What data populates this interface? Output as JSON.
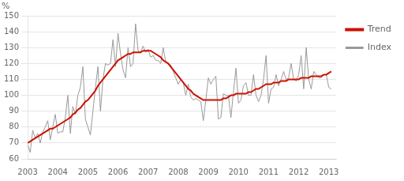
{
  "chart_data": {
    "type": "line",
    "ylabel": "%",
    "x": [
      2003,
      2003.083333,
      2003.166667,
      2003.25,
      2003.333333,
      2003.416667,
      2003.5,
      2003.583333,
      2003.666667,
      2003.75,
      2003.833333,
      2003.916667,
      2004,
      2004.083333,
      2004.166667,
      2004.25,
      2004.333333,
      2004.416667,
      2004.5,
      2004.583333,
      2004.666667,
      2004.75,
      2004.833333,
      2004.916667,
      2005,
      2005.083333,
      2005.166667,
      2005.25,
      2005.333333,
      2005.416667,
      2005.5,
      2005.583333,
      2005.666667,
      2005.75,
      2005.833333,
      2005.916667,
      2006,
      2006.083333,
      2006.166667,
      2006.25,
      2006.333333,
      2006.416667,
      2006.5,
      2006.583333,
      2006.666667,
      2006.75,
      2006.833333,
      2006.916667,
      2007,
      2007.083333,
      2007.166667,
      2007.25,
      2007.333333,
      2007.416667,
      2007.5,
      2007.583333,
      2007.666667,
      2007.75,
      2007.833333,
      2007.916667,
      2008,
      2008.083333,
      2008.166667,
      2008.25,
      2008.333333,
      2008.416667,
      2008.5,
      2008.583333,
      2008.666667,
      2008.75,
      2008.833333,
      2008.916667,
      2009,
      2009.083333,
      2009.166667,
      2009.25,
      2009.333333,
      2009.416667,
      2009.5,
      2009.583333,
      2009.666667,
      2009.75,
      2009.833333,
      2009.916667,
      2010,
      2010.083333,
      2010.166667,
      2010.25,
      2010.333333,
      2010.416667,
      2010.5,
      2010.583333,
      2010.666667,
      2010.75,
      2010.833333,
      2010.916667,
      2011,
      2011.083333,
      2011.166667,
      2011.25,
      2011.333333,
      2011.416667,
      2011.5,
      2011.583333,
      2011.666667,
      2011.75,
      2011.833333,
      2011.916667,
      2012,
      2012.083333,
      2012.166667,
      2012.25,
      2012.333333,
      2012.416667,
      2012.5,
      2012.583333,
      2012.666667,
      2012.75,
      2012.833333,
      2012.916667,
      2013,
      2013.083333
    ],
    "xlim": [
      2003,
      2013.25
    ],
    "xticks": [
      2003,
      2004,
      2005,
      2006,
      2007,
      2008,
      2009,
      2010,
      2011,
      2012,
      2013
    ],
    "ylim": [
      60,
      150
    ],
    "yticks": [
      60,
      70,
      80,
      90,
      100,
      110,
      120,
      130,
      140,
      150
    ],
    "grid": "y",
    "legend": "right",
    "series": [
      {
        "name": "Index",
        "color": "#999999",
        "values": [
          69,
          64,
          78,
          73,
          76,
          70,
          77,
          80,
          84,
          72,
          80,
          88,
          76,
          77,
          77,
          86,
          100,
          76,
          93,
          88,
          100,
          105,
          118,
          85,
          80,
          75,
          90,
          105,
          118,
          90,
          110,
          120,
          119,
          120,
          135,
          118,
          139,
          126,
          116,
          111,
          130,
          118,
          120,
          145,
          128,
          127,
          131,
          127,
          129,
          124,
          125,
          122,
          122,
          120,
          130,
          121,
          120,
          119,
          115,
          111,
          107,
          110,
          108,
          100,
          107,
          99,
          97,
          98,
          97,
          96,
          84,
          97,
          111,
          107,
          110,
          112,
          85,
          86,
          101,
          100,
          100,
          86,
          102,
          117,
          95,
          97,
          106,
          108,
          100,
          100,
          113,
          100,
          96,
          100,
          110,
          125,
          95,
          104,
          105,
          113,
          106,
          110,
          115,
          110,
          111,
          120,
          110,
          109,
          113,
          125,
          104,
          130,
          110,
          104,
          115,
          113,
          111,
          111,
          113,
          113,
          105,
          104
        ]
      },
      {
        "name": "Trend",
        "color": "#cc1100",
        "values": [
          70,
          71,
          72,
          73,
          74,
          75,
          76,
          77,
          78,
          79,
          79,
          80,
          81,
          82,
          83,
          84,
          85,
          86,
          88,
          89,
          91,
          92,
          94,
          96,
          97,
          99,
          101,
          103,
          106,
          108,
          110,
          112,
          114,
          116,
          118,
          120,
          122,
          123,
          124,
          125,
          126,
          126,
          127,
          127,
          127,
          127,
          128,
          128,
          128,
          128,
          127,
          126,
          125,
          124,
          122,
          121,
          120,
          118,
          116,
          114,
          112,
          110,
          108,
          106,
          104,
          103,
          101,
          100,
          99,
          98,
          97,
          97,
          97,
          97,
          97,
          97,
          97,
          97,
          98,
          98,
          99,
          100,
          100,
          101,
          101,
          101,
          101,
          101,
          102,
          102,
          103,
          104,
          104,
          105,
          106,
          107,
          107,
          107,
          108,
          108,
          108,
          109,
          109,
          109,
          110,
          110,
          110,
          110,
          110,
          111,
          111,
          111,
          111,
          112,
          112,
          112,
          112,
          112,
          113,
          113,
          114,
          115
        ]
      }
    ]
  }
}
